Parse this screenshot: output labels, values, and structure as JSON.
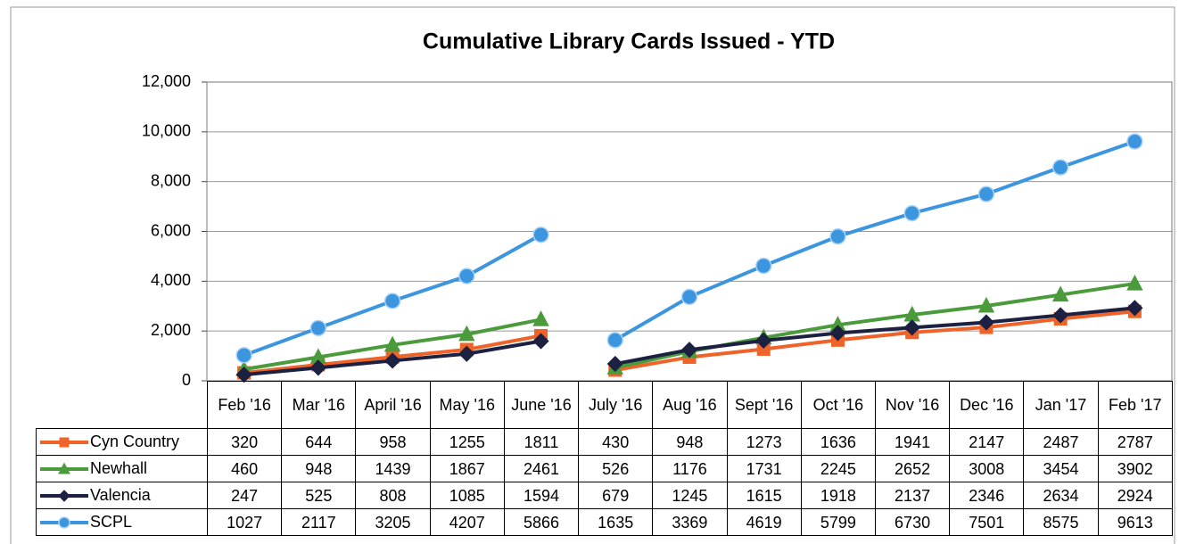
{
  "chart_data": {
    "type": "line",
    "title": "Cumulative Library Cards Issued - YTD",
    "categories": [
      "Feb '16",
      "Mar '16",
      "April '16",
      "May '16",
      "June '16",
      "July '16",
      "Aug '16",
      "Sept '16",
      "Oct '16",
      "Nov '16",
      "Dec '16",
      "Jan '17",
      "Feb '17"
    ],
    "line_breaks": [
      5
    ],
    "series": [
      {
        "name": "Cyn Country",
        "color": "#ef6329",
        "marker": "square",
        "values": [
          320,
          644,
          958,
          1255,
          1811,
          430,
          948,
          1273,
          1636,
          1941,
          2147,
          2487,
          2787
        ]
      },
      {
        "name": "Newhall",
        "color": "#4b9a3b",
        "marker": "triangle",
        "values": [
          460,
          948,
          1439,
          1867,
          2461,
          526,
          1176,
          1731,
          2245,
          2652,
          3008,
          3454,
          3902
        ]
      },
      {
        "name": "Valencia",
        "color": "#1c2142",
        "marker": "diamond",
        "values": [
          247,
          525,
          808,
          1085,
          1594,
          679,
          1245,
          1615,
          1918,
          2137,
          2346,
          2634,
          2924
        ]
      },
      {
        "name": "SCPL",
        "color": "#3c95df",
        "marker": "circle",
        "values": [
          1027,
          2117,
          3205,
          4207,
          5866,
          1635,
          3369,
          4619,
          5799,
          6730,
          7501,
          8575,
          9613
        ]
      }
    ],
    "ylim": [
      0,
      12000
    ],
    "yticks": [
      0,
      {
        "value": 2000,
        "label": "2,000"
      },
      {
        "value": 4000,
        "label": "4,000"
      },
      {
        "value": 6000,
        "label": "6,000"
      },
      {
        "value": 8000,
        "label": "8,000"
      },
      {
        "value": 10000,
        "label": "10,000"
      },
      {
        "value": 12000,
        "label": "12,000"
      }
    ],
    "grid": true
  }
}
